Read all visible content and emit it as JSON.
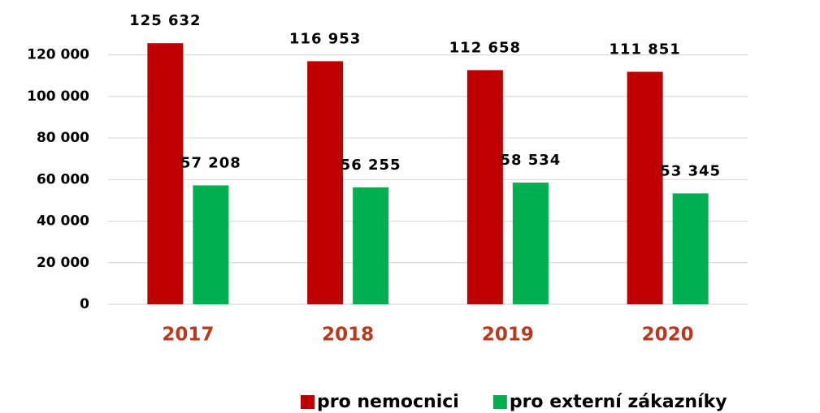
{
  "chart_data": {
    "type": "bar",
    "categories": [
      "2017",
      "2018",
      "2019",
      "2020"
    ],
    "series": [
      {
        "name": "pro nemocnici",
        "color": "#c00000",
        "values": [
          125632,
          116953,
          112658,
          111851
        ],
        "value_labels": [
          "125 632",
          "116 953",
          "112 658",
          "111 851"
        ]
      },
      {
        "name": "pro externí zákazníky",
        "color": "#00b050",
        "values": [
          57208,
          56255,
          58534,
          53345
        ],
        "value_labels": [
          "57 208",
          "56 255",
          "58 534",
          "53 345"
        ]
      }
    ],
    "ylim": [
      0,
      130000
    ],
    "yticks": [
      0,
      {
        "value": 20000,
        "label": "20 000"
      },
      {
        "value": 40000,
        "label": "40 000"
      },
      {
        "value": 60000,
        "label": "60 000"
      },
      {
        "value": 80000,
        "label": "80 000"
      },
      {
        "value": 100000,
        "label": "100 000"
      },
      {
        "value": 120000,
        "label": "120 000"
      }
    ],
    "grid": true
  }
}
